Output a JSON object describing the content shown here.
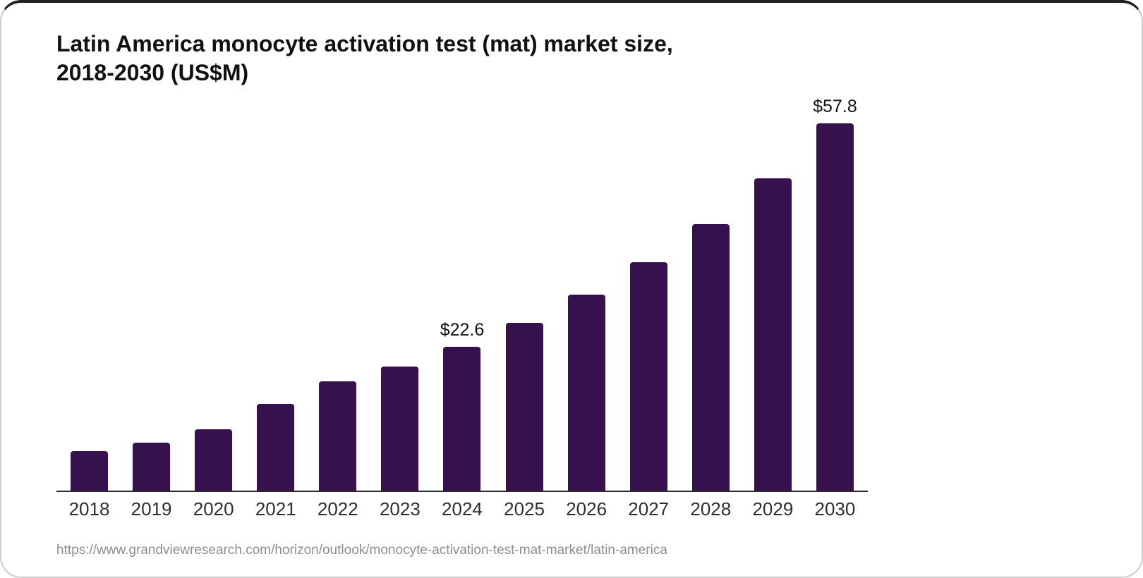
{
  "title": {
    "line1": "Latin America monocyte activation test (mat) market size,",
    "line2": "2018-2030 (US$M)"
  },
  "chart_data": {
    "type": "bar",
    "title": "Latin America monocyte activation test (mat) market size, 2018-2030 (US$M)",
    "categories": [
      "2018",
      "2019",
      "2020",
      "2021",
      "2022",
      "2023",
      "2024",
      "2025",
      "2026",
      "2027",
      "2028",
      "2029",
      "2030"
    ],
    "values": [
      6.2,
      7.5,
      9.7,
      13.7,
      17.2,
      19.5,
      22.6,
      26.4,
      30.8,
      35.9,
      41.9,
      49.2,
      57.8
    ],
    "data_labels": {
      "2024": "$22.6",
      "2030": "$57.8"
    },
    "value_prefix": "$",
    "unit": "US$M",
    "xlabel": "",
    "ylabel": "",
    "ylim": [
      0,
      57.8
    ],
    "grid": "off",
    "legend": "none",
    "bar_color": "#36114d",
    "axis_color": "#2b2b2b",
    "label_color": "#111111",
    "tick_color": "#2e2e2e"
  },
  "source": {
    "url": "https://www.grandviewresearch.com/horizon/outlook/monocyte-activation-test-mat-market/latin-america"
  }
}
